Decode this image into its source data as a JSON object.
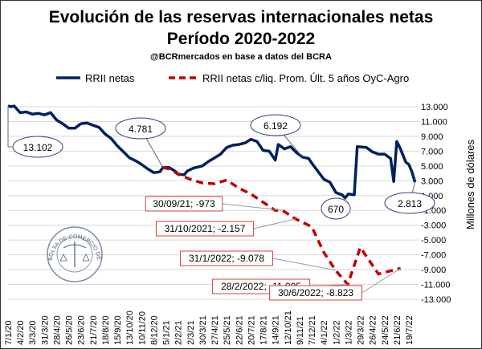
{
  "chart_data": {
    "type": "line",
    "title": "Evolución de las reservas internacionales netas",
    "subtitle": "Período 2020-2022",
    "source": "@BCRmercados en base a datos del BCRA",
    "ylabel": "Millones de dólares",
    "ylim": [
      -13000,
      13000
    ],
    "yticks": [
      13000,
      11000,
      9000,
      7000,
      5000,
      3000,
      1000,
      -1000,
      -3000,
      -5000,
      -7000,
      -9000,
      -11000,
      -13000
    ],
    "ytick_labels": [
      "13.000",
      "11.000",
      "9.000",
      "7.000",
      "5.000",
      "3.000",
      "1.000",
      "-1.000",
      "-3.000",
      "-5.000",
      "-7.000",
      "-9.000",
      "-11.000",
      "-13.000"
    ],
    "xticks": [
      "7/1/20",
      "4/2/20",
      "3/3/20",
      "31/3/20",
      "28/4/20",
      "26/5/20",
      "23/6/20",
      "21/7/20",
      "18/8/20",
      "15/9/20",
      "13/10/20",
      "10/11/20",
      "8/12/20",
      "5/1/21",
      "2/2/21",
      "2/3/21",
      "30/3/21",
      "27/4/21",
      "25/5/21",
      "22/6/21",
      "20/7/21",
      "17/8/21",
      "14/9/21",
      "12/10/21",
      "9/11/21",
      "7/12/21",
      "4/1/22",
      "1/2/22",
      "1/3/22",
      "29/3/22",
      "26/4/22",
      "24/5/22",
      "21/6/22",
      "19/7/22"
    ],
    "grid": true,
    "legend_position": "top",
    "series": [
      {
        "name": "RRII netas",
        "color": "#002060",
        "style": "solid",
        "points": [
          [
            "7/1/20",
            13102
          ],
          [
            "14/1/20",
            13000
          ],
          [
            "21/1/20",
            13100
          ],
          [
            "4/2/20",
            12200
          ],
          [
            "18/2/20",
            12300
          ],
          [
            "3/3/20",
            12000
          ],
          [
            "17/3/20",
            12100
          ],
          [
            "31/3/20",
            11900
          ],
          [
            "14/4/20",
            12200
          ],
          [
            "28/4/20",
            11200
          ],
          [
            "12/5/20",
            10700
          ],
          [
            "26/5/20",
            10100
          ],
          [
            "9/6/20",
            10100
          ],
          [
            "23/6/20",
            10700
          ],
          [
            "7/7/20",
            10800
          ],
          [
            "21/7/20",
            10500
          ],
          [
            "4/8/20",
            10200
          ],
          [
            "18/8/20",
            9300
          ],
          [
            "1/9/20",
            8700
          ],
          [
            "15/9/20",
            7700
          ],
          [
            "29/9/20",
            6900
          ],
          [
            "13/10/20",
            6100
          ],
          [
            "27/10/20",
            5700
          ],
          [
            "10/11/20",
            5200
          ],
          [
            "24/11/20",
            4600
          ],
          [
            "8/12/20",
            4100
          ],
          [
            "22/12/20",
            4200
          ],
          [
            "29/12/20",
            4781
          ],
          [
            "12/1/21",
            4800
          ],
          [
            "26/1/21",
            4300
          ],
          [
            "2/2/21",
            3900
          ],
          [
            "16/2/21",
            3800
          ],
          [
            "23/2/21",
            4300
          ],
          [
            "9/3/21",
            4700
          ],
          [
            "30/3/21",
            5000
          ],
          [
            "13/4/21",
            5600
          ],
          [
            "27/4/21",
            6100
          ],
          [
            "11/5/21",
            6600
          ],
          [
            "25/5/21",
            7500
          ],
          [
            "8/6/21",
            7800
          ],
          [
            "22/6/21",
            7900
          ],
          [
            "6/7/21",
            8100
          ],
          [
            "20/7/21",
            8600
          ],
          [
            "3/8/21",
            8300
          ],
          [
            "17/8/21",
            7100
          ],
          [
            "31/8/21",
            7000
          ],
          [
            "14/9/21",
            5800
          ],
          [
            "21/9/21",
            7900
          ],
          [
            "5/10/21",
            7300
          ],
          [
            "19/10/21",
            7600
          ],
          [
            "2/11/21",
            6800
          ],
          [
            "16/11/21",
            6192
          ],
          [
            "30/11/21",
            6000
          ],
          [
            "7/12/21",
            5400
          ],
          [
            "21/12/21",
            4300
          ],
          [
            "4/1/22",
            3200
          ],
          [
            "18/1/22",
            2800
          ],
          [
            "1/2/22",
            1400
          ],
          [
            "15/2/22",
            1100
          ],
          [
            "22/2/22",
            670
          ],
          [
            "1/3/22",
            1200
          ],
          [
            "15/3/22",
            1100
          ],
          [
            "22/3/22",
            7600
          ],
          [
            "12/4/22",
            7500
          ],
          [
            "26/4/22",
            6900
          ],
          [
            "10/5/22",
            6600
          ],
          [
            "24/5/22",
            6600
          ],
          [
            "7/6/22",
            6000
          ],
          [
            "14/6/22",
            2900
          ],
          [
            "21/6/22",
            8300
          ],
          [
            "28/6/22",
            7500
          ],
          [
            "12/7/22",
            5500
          ],
          [
            "19/7/22",
            5200
          ],
          [
            "26/7/22",
            4200
          ],
          [
            "2/8/22",
            2813
          ]
        ]
      },
      {
        "name": "RRII netas c/liq. Prom. Últ. 5 años OyC-Agro",
        "color": "#C00000",
        "style": "dashed",
        "points": [
          [
            "29/12/20",
            4781
          ],
          [
            "12/1/21",
            4600
          ],
          [
            "2/2/21",
            3900
          ],
          [
            "2/3/21",
            3200
          ],
          [
            "30/3/21",
            2700
          ],
          [
            "27/4/21",
            2600
          ],
          [
            "25/5/21",
            3100
          ],
          [
            "22/6/21",
            2000
          ],
          [
            "20/7/21",
            1200
          ],
          [
            "30/9/21",
            -973
          ],
          [
            "14/9/21",
            -1000
          ],
          [
            "31/10/21",
            -2157
          ],
          [
            "7/12/21",
            -3200
          ],
          [
            "4/1/22",
            -6700
          ],
          [
            "31/1/22",
            -9078
          ],
          [
            "28/2/22",
            -11005
          ],
          [
            "29/3/22",
            -6000
          ],
          [
            "10/5/22",
            -9600
          ],
          [
            "30/6/22",
            -8823
          ]
        ]
      }
    ],
    "annotations": {
      "blue": [
        {
          "label": "13.102",
          "date": "7/1/20",
          "value": 13102
        },
        {
          "label": "4.781",
          "date": "29/12/20",
          "value": 4781
        },
        {
          "label": "6.192",
          "date": "16/11/21",
          "value": 6192
        },
        {
          "label": "670",
          "date": "22/2/22",
          "value": 670
        },
        {
          "label": "2.813",
          "date": "2/8/22",
          "value": 2813
        }
      ],
      "red": [
        {
          "label": "30/09/21; -973",
          "date": "30/9/21",
          "value": -973
        },
        {
          "label": "31/10/2021; -2.157",
          "date": "31/10/21",
          "value": -2157
        },
        {
          "label": "31/1/2022; -9.078",
          "date": "31/1/22",
          "value": -9078
        },
        {
          "label": "28/2/2022; -11.005",
          "date": "28/2/22",
          "value": -11005
        },
        {
          "label": "30/6/2022; -8.823",
          "date": "30/6/22",
          "value": -8823
        }
      ]
    }
  },
  "watermark": {
    "text": "BOLSA DE COMERCIO DE ROSARIO"
  }
}
